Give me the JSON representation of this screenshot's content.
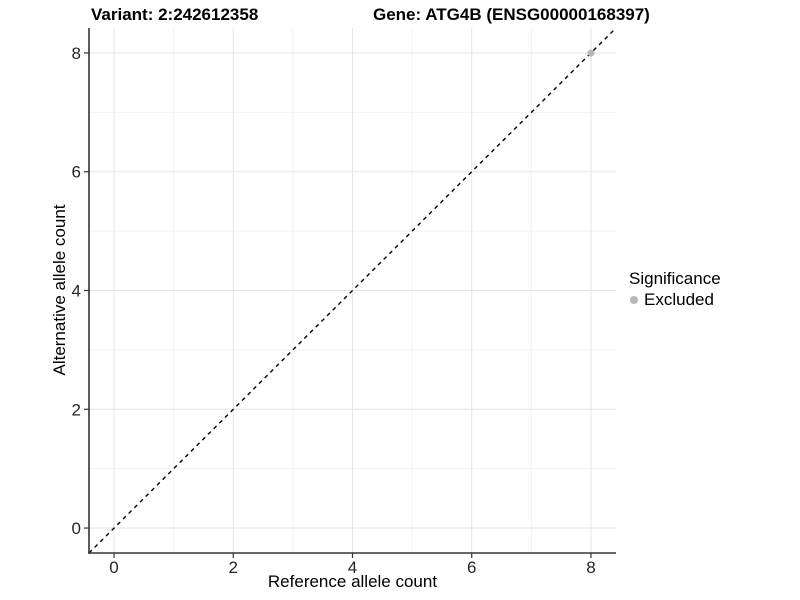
{
  "header": {
    "title_variant": "Variant: 2:242612358",
    "title_gene": "Gene: ATG4B (ENSG00000168397)"
  },
  "chart_data": {
    "type": "scatter",
    "title": "Variant: 2:242612358 | Gene: ATG4B (ENSG00000168397)",
    "xlabel": "Reference allele count",
    "ylabel": "Alternative allele count",
    "xlim": [
      -0.42,
      8.42
    ],
    "ylim": [
      -0.42,
      8.42
    ],
    "x_ticks": [
      0,
      2,
      4,
      6,
      8
    ],
    "y_ticks": [
      0,
      2,
      4,
      6,
      8
    ],
    "x_minor": [
      1,
      3,
      5,
      7
    ],
    "y_minor": [
      1,
      3,
      5,
      7
    ],
    "grid": "major+minor",
    "points": [
      {
        "x": 8,
        "y": 8,
        "significance": "Excluded",
        "color": "#b8b8b8"
      }
    ],
    "ref_line": {
      "slope": 1,
      "intercept": 0,
      "linetype": "dashed",
      "color": "#000000"
    },
    "legend": {
      "title": "Significance",
      "position": "right",
      "items": [
        {
          "label": "Excluded",
          "color": "#b8b8b8",
          "marker": "circle"
        }
      ]
    },
    "style": {
      "panel_bg": "#ffffff",
      "grid_major": "#e5e5e5",
      "grid_minor": "#f2f2f2",
      "axis_line": "#333333",
      "tick_color": "#333333",
      "tick_label_color": "#262626",
      "point_radius": 3.5,
      "tick_font_size": 17
    }
  }
}
